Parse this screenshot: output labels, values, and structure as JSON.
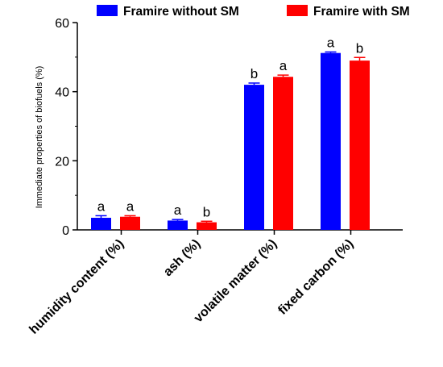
{
  "chart_data": {
    "type": "bar",
    "title": "",
    "xlabel": "",
    "ylabel": "Immediate properties of biofuels (%)",
    "ylim": [
      0,
      60
    ],
    "yticks": [
      0,
      20,
      40,
      60
    ],
    "grid": false,
    "legend_position": "top",
    "categories": [
      "humidity content (%)",
      "ash (%)",
      "volatile matter (%)",
      "fixed carbon (%)"
    ],
    "series": [
      {
        "name": "Framire without SM",
        "color": "#0000ff",
        "values": [
          3.5,
          2.7,
          42.0,
          51.2
        ],
        "errors": [
          0.6,
          0.3,
          0.5,
          0.3
        ],
        "letters": [
          "a",
          "a",
          "b",
          "a"
        ]
      },
      {
        "name": "Framire with SM",
        "color": "#ff0000",
        "values": [
          3.8,
          2.2,
          44.3,
          49.0
        ],
        "errors": [
          0.3,
          0.3,
          0.5,
          0.9
        ],
        "letters": [
          "a",
          "b",
          "a",
          "b"
        ]
      }
    ]
  }
}
